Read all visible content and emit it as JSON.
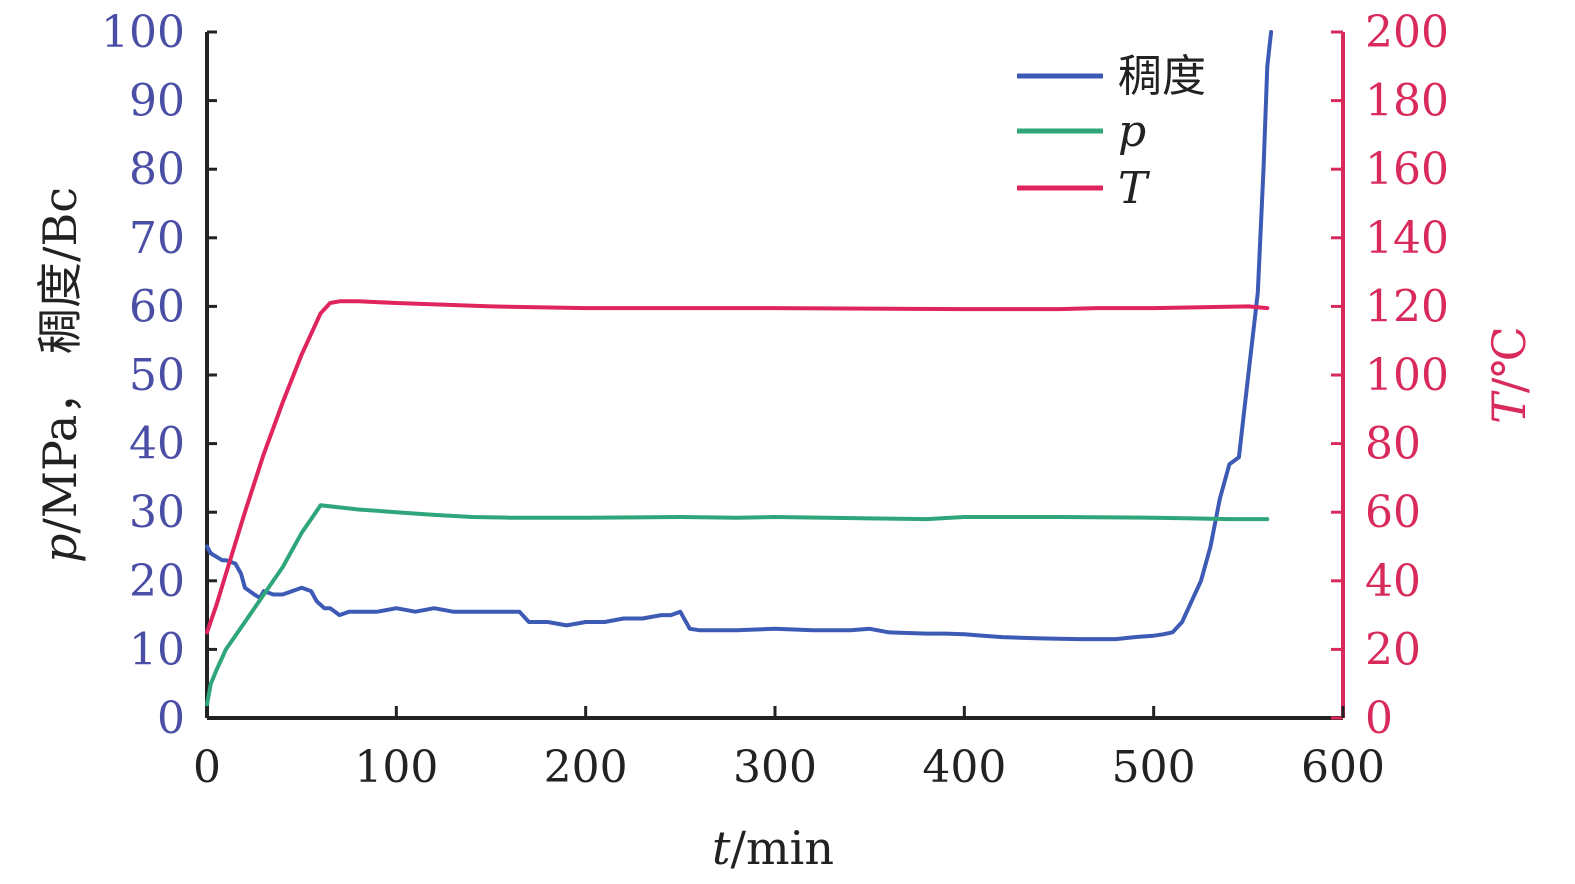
{
  "chart_data": {
    "type": "line",
    "xlabel_italic": "t",
    "xlabel_rest": "/min",
    "ylabel_left_italic": "p",
    "ylabel_left_rest": "/MPa，  稠度/Bc",
    "ylabel_right_italic": "T",
    "ylabel_right_rest": "/℃",
    "xlim": [
      0,
      600
    ],
    "ylim_left": [
      0,
      100
    ],
    "ylim_right": [
      0,
      200
    ],
    "x_ticks": [
      "0",
      "100",
      "200",
      "300",
      "400",
      "500",
      "600"
    ],
    "y_left_ticks": [
      "0",
      "10",
      "20",
      "30",
      "40",
      "50",
      "60",
      "70",
      "80",
      "90",
      "100"
    ],
    "y_right_ticks": [
      "0",
      "20",
      "40",
      "60",
      "80",
      "100",
      "120",
      "140",
      "160",
      "180",
      "200"
    ],
    "grid": false,
    "legend_position": "top-right",
    "colors": {
      "consistency": "#3d5bb5",
      "pressure": "#2fa57a",
      "temperature": "#e0245e",
      "left_axis_text": "#4a4fa5",
      "right_axis": "#d92a5c",
      "axis": "#222222"
    },
    "series": [
      {
        "key": "consistency",
        "name": "稠度",
        "axis": "left",
        "x": [
          0,
          2,
          5,
          8,
          10,
          15,
          18,
          20,
          25,
          28,
          30,
          35,
          40,
          45,
          50,
          55,
          58,
          62,
          65,
          70,
          75,
          80,
          90,
          100,
          110,
          120,
          130,
          140,
          150,
          160,
          165,
          170,
          180,
          190,
          200,
          210,
          220,
          230,
          240,
          245,
          250,
          255,
          260,
          280,
          300,
          320,
          340,
          350,
          360,
          380,
          390,
          400,
          410,
          420,
          440,
          460,
          480,
          490,
          500,
          505,
          510,
          515,
          520,
          525,
          530,
          535,
          540,
          545,
          550,
          555,
          558,
          560,
          562
        ],
        "y": [
          25,
          24,
          23.5,
          23,
          23,
          22.5,
          21,
          19,
          18,
          17.5,
          18.5,
          18,
          18,
          18.5,
          19,
          18.5,
          17,
          16,
          16,
          15,
          15.5,
          15.5,
          15.5,
          16,
          15.5,
          16,
          15.5,
          15.5,
          15.5,
          15.5,
          15.5,
          14,
          14,
          13.5,
          14,
          14,
          14.5,
          14.5,
          15,
          15,
          15.5,
          13,
          12.8,
          12.8,
          13,
          12.8,
          12.8,
          13,
          12.5,
          12.3,
          12.3,
          12.2,
          12,
          11.8,
          11.6,
          11.5,
          11.5,
          11.8,
          12,
          12.2,
          12.5,
          14,
          17,
          20,
          25,
          32,
          37,
          38,
          50,
          62,
          80,
          95,
          100
        ]
      },
      {
        "key": "pressure",
        "name": "p",
        "name_italic": true,
        "axis": "left",
        "x": [
          0,
          2,
          5,
          10,
          15,
          20,
          30,
          40,
          50,
          55,
          60,
          70,
          80,
          100,
          120,
          140,
          160,
          200,
          250,
          280,
          300,
          350,
          380,
          400,
          450,
          500,
          520,
          540,
          560
        ],
        "y": [
          2,
          5,
          7,
          10,
          12,
          14,
          18,
          22,
          27,
          29,
          31,
          30.7,
          30.4,
          30,
          29.6,
          29.3,
          29.2,
          29.2,
          29.3,
          29.2,
          29.3,
          29.1,
          29,
          29.3,
          29.3,
          29.2,
          29.1,
          29,
          29
        ]
      },
      {
        "key": "temperature",
        "name": "T",
        "name_italic": true,
        "axis": "right",
        "x": [
          0,
          5,
          10,
          20,
          30,
          40,
          50,
          60,
          65,
          70,
          80,
          100,
          150,
          200,
          300,
          400,
          450,
          470,
          500,
          550,
          560
        ],
        "y": [
          25,
          33,
          42,
          60,
          77,
          92,
          106,
          118,
          121,
          121.5,
          121.5,
          121,
          120,
          119.5,
          119.5,
          119.2,
          119.2,
          119.5,
          119.5,
          120,
          119.5
        ]
      }
    ]
  }
}
